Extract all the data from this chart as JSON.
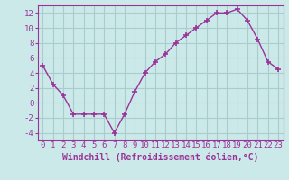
{
  "x": [
    0,
    1,
    2,
    3,
    4,
    5,
    6,
    7,
    8,
    9,
    10,
    11,
    12,
    13,
    14,
    15,
    16,
    17,
    18,
    19,
    20,
    21,
    22,
    23
  ],
  "y": [
    5.0,
    2.5,
    1.0,
    -1.5,
    -1.5,
    -1.5,
    -1.5,
    -4.0,
    -1.5,
    1.5,
    4.0,
    5.5,
    6.5,
    8.0,
    9.0,
    10.0,
    11.0,
    12.0,
    12.0,
    12.5,
    11.0,
    8.5,
    5.5,
    4.5
  ],
  "line_color": "#993399",
  "marker": "+",
  "marker_size": 4,
  "marker_linewidth": 1.2,
  "line_width": 1.0,
  "bg_color": "#cce9e9",
  "grid_color": "#aacccc",
  "xlabel": "Windchill (Refroidissement éolien,°C)",
  "xlabel_fontsize": 7,
  "tick_fontsize": 6.5,
  "ylim": [
    -5,
    13
  ],
  "yticks": [
    -4,
    -2,
    0,
    2,
    4,
    6,
    8,
    10,
    12
  ],
  "xticks": [
    0,
    1,
    2,
    3,
    4,
    5,
    6,
    7,
    8,
    9,
    10,
    11,
    12,
    13,
    14,
    15,
    16,
    17,
    18,
    19,
    20,
    21,
    22,
    23
  ],
  "axes_color": "#993399"
}
